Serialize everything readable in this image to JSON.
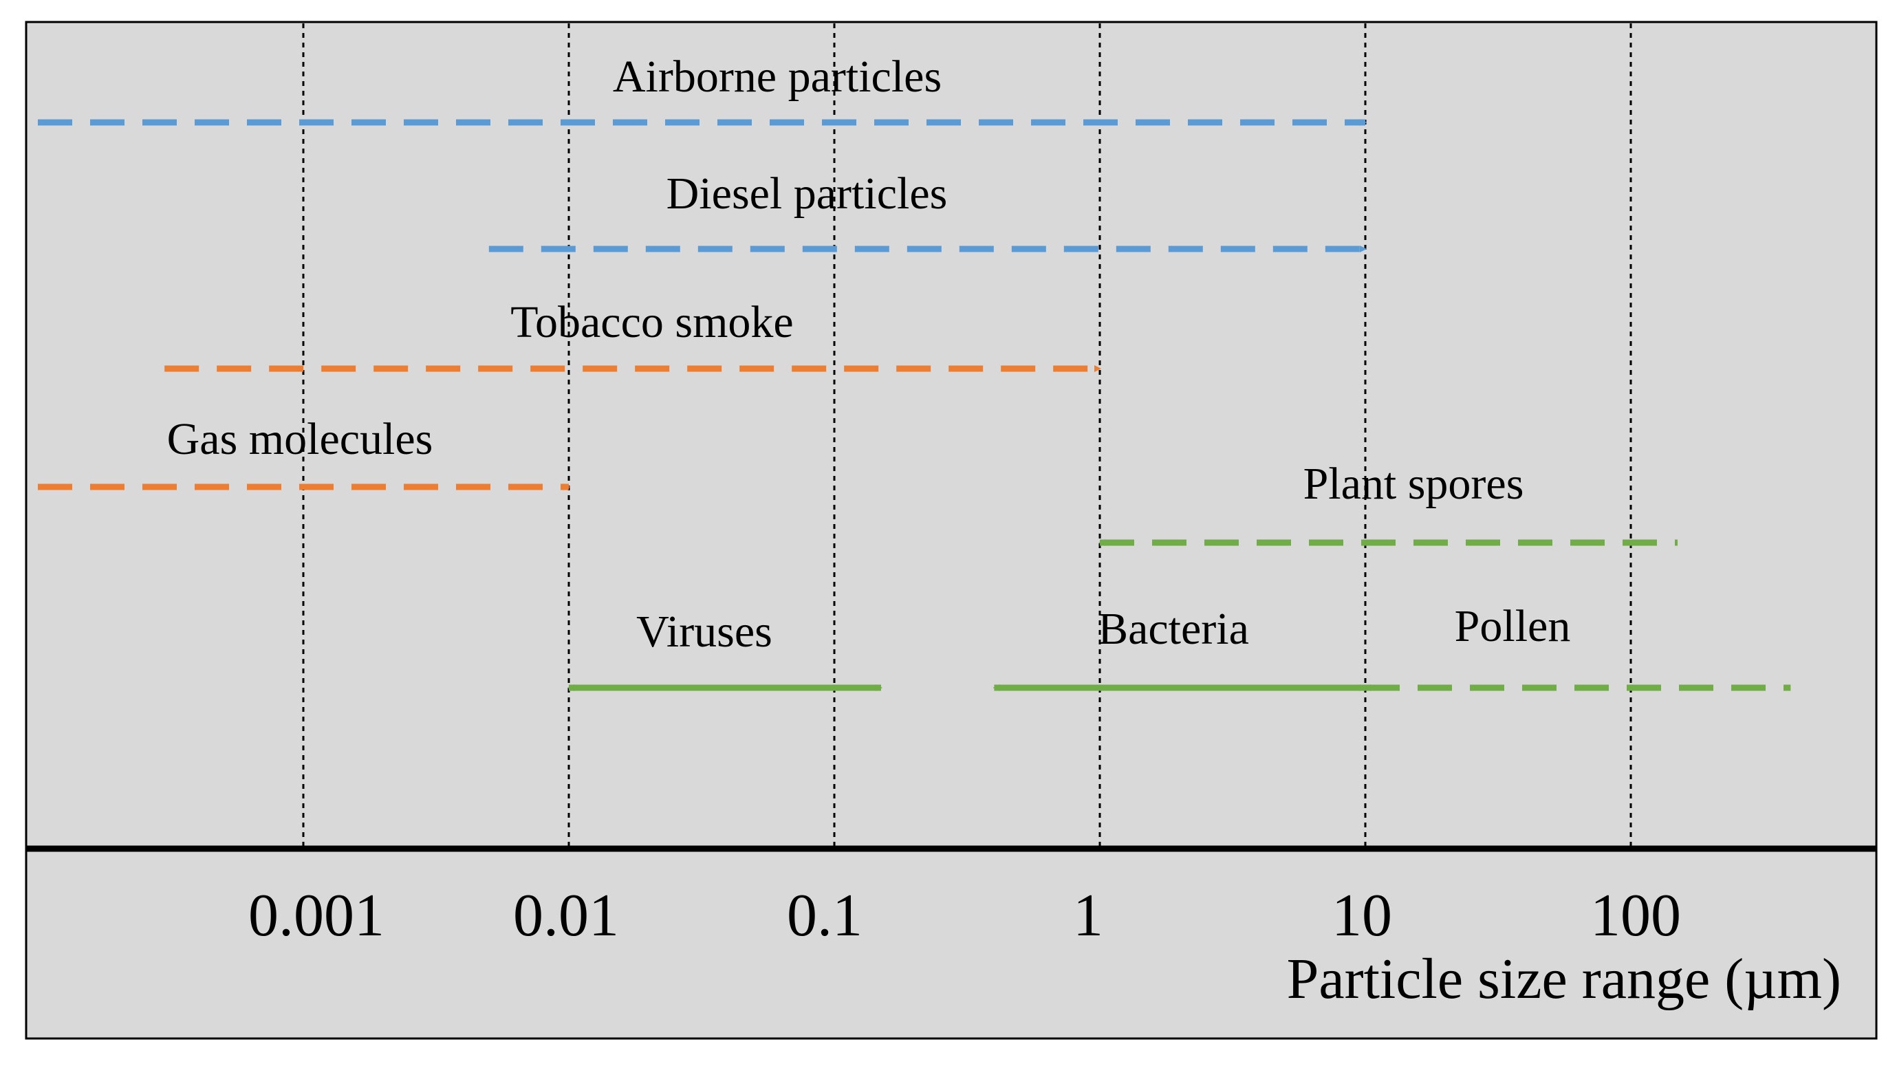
{
  "chart_data": {
    "type": "range",
    "xlabel": "Particle size range (µm)",
    "xscale": "log",
    "ticks": [
      "0.001",
      "0.01",
      "0.1",
      "1",
      "10",
      "100"
    ],
    "tick_values": [
      0.001,
      0.01,
      0.1,
      1,
      10,
      100
    ],
    "grid": "vertical dotted lines at each tick",
    "colors": {
      "blue": "#5b9bd5",
      "orange": "#ed7d31",
      "green": "#70ad47"
    },
    "series": [
      {
        "name": "Airborne particles",
        "from": 0.0001,
        "to": 10,
        "color": "blue",
        "style": "dashed",
        "arrow": "end"
      },
      {
        "name": "Diesel particles",
        "from": 0.005,
        "to": 10,
        "color": "blue",
        "style": "dashed",
        "arrow": "end"
      },
      {
        "name": "Tobacco smoke",
        "from": 0.0003,
        "to": 1,
        "color": "orange",
        "style": "dashed",
        "arrow": "end"
      },
      {
        "name": "Gas molecules",
        "from": 0.0001,
        "to": 0.01,
        "color": "orange",
        "style": "dashed",
        "arrow": "end"
      },
      {
        "name": "Plant spores",
        "from": 1,
        "to": 150,
        "color": "green",
        "style": "dashed",
        "arrow": "start"
      },
      {
        "name": "Viruses",
        "from": 0.01,
        "to": 0.15,
        "color": "green",
        "style": "solid",
        "arrow": "both"
      },
      {
        "name": "Bacteria",
        "from": 0.4,
        "to": 10,
        "color": "green",
        "style": "solid",
        "arrow": "both"
      },
      {
        "name": "Pollen",
        "from": 10,
        "to": 400,
        "color": "green",
        "style": "dashed",
        "arrow": "start"
      }
    ]
  }
}
